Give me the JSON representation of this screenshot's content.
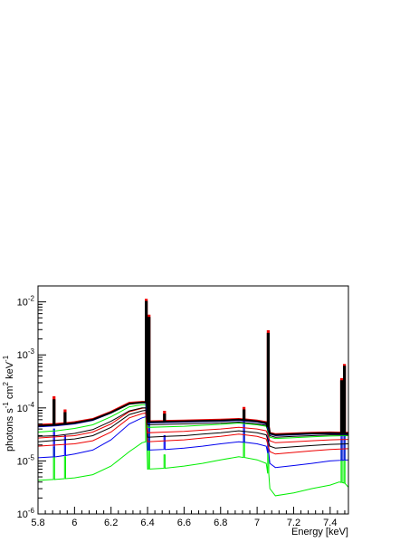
{
  "chart_data": {
    "type": "line",
    "title": "",
    "xlabel": "Energy [keV]",
    "ylabel_parts": [
      "photons s",
      "-1",
      " cm",
      "2",
      " keV",
      "-1"
    ],
    "xlim": [
      5.8,
      7.5
    ],
    "ylim": [
      1e-06,
      0.02
    ],
    "log_y": true,
    "grid": false,
    "legend": "none",
    "x_ticks": [
      {
        "value": 5.8,
        "label": "5.8"
      },
      {
        "value": 6.0,
        "label": "6"
      },
      {
        "value": 6.2,
        "label": "6.2"
      },
      {
        "value": 6.4,
        "label": "6.4"
      },
      {
        "value": 6.6,
        "label": "6.6"
      },
      {
        "value": 6.8,
        "label": "6.8"
      },
      {
        "value": 7.0,
        "label": "7"
      },
      {
        "value": 7.2,
        "label": "7.2"
      },
      {
        "value": 7.4,
        "label": "7.4"
      }
    ],
    "y_ticks": [
      {
        "value": 1e-06,
        "base": "10",
        "exp": "-6"
      },
      {
        "value": 1e-05,
        "base": "10",
        "exp": "-5"
      },
      {
        "value": 0.0001,
        "base": "10",
        "exp": "-4"
      },
      {
        "value": 0.001,
        "base": "10",
        "exp": "-3"
      },
      {
        "value": 0.01,
        "base": "10",
        "exp": "-2"
      }
    ],
    "series": [
      {
        "color": "#00ee00",
        "continuum": [
          [
            5.8,
            4.3e-06
          ],
          [
            5.9,
            4.5e-06
          ],
          [
            6.0,
            4.8e-06
          ],
          [
            6.1,
            5.5e-06
          ],
          [
            6.2,
            8e-06
          ],
          [
            6.3,
            1.5e-05
          ],
          [
            6.37,
            2.2e-05
          ],
          [
            6.39,
            2.3e-05
          ],
          [
            6.4,
            7e-06
          ],
          [
            6.5,
            7.3e-06
          ],
          [
            6.6,
            8e-06
          ],
          [
            6.7,
            9e-06
          ],
          [
            6.8,
            1.05e-05
          ],
          [
            6.9,
            1.2e-05
          ],
          [
            7.0,
            1.05e-05
          ],
          [
            7.05,
            9e-06
          ],
          [
            7.07,
            3e-06
          ],
          [
            7.1,
            2.2e-06
          ],
          [
            7.2,
            2.5e-06
          ],
          [
            7.3,
            3e-06
          ],
          [
            7.4,
            3.5e-06
          ],
          [
            7.45,
            4e-06
          ],
          [
            7.48,
            3.8e-06
          ],
          [
            7.5,
            3.2e-06
          ]
        ],
        "lines": [
          [
            5.885,
            1.8e-05
          ],
          [
            5.945,
            1.2e-05
          ],
          [
            6.39,
            0.00026
          ],
          [
            6.405,
            0.00022
          ],
          [
            6.49,
            1.3e-05
          ],
          [
            6.925,
            3.5e-05
          ],
          [
            7.058,
            8e-05
          ],
          [
            7.46,
            2.6e-05
          ],
          [
            7.475,
            3.2e-05
          ]
        ]
      },
      {
        "color": "#0000ee",
        "continuum": [
          [
            5.8,
            1.15e-05
          ],
          [
            5.9,
            1.2e-05
          ],
          [
            6.0,
            1.35e-05
          ],
          [
            6.1,
            1.6e-05
          ],
          [
            6.2,
            2.5e-05
          ],
          [
            6.3,
            5e-05
          ],
          [
            6.37,
            6.5e-05
          ],
          [
            6.39,
            6.8e-05
          ],
          [
            6.4,
            1.6e-05
          ],
          [
            6.5,
            1.65e-05
          ],
          [
            6.6,
            1.75e-05
          ],
          [
            6.7,
            1.9e-05
          ],
          [
            6.8,
            2.1e-05
          ],
          [
            6.9,
            2.3e-05
          ],
          [
            7.0,
            2.1e-05
          ],
          [
            7.05,
            1.9e-05
          ],
          [
            7.07,
            9e-06
          ],
          [
            7.1,
            7.5e-06
          ],
          [
            7.2,
            8.2e-06
          ],
          [
            7.3,
            9e-06
          ],
          [
            7.4,
            1e-05
          ],
          [
            7.5,
            1.05e-05
          ]
        ],
        "lines": [
          [
            5.885,
            4e-05
          ],
          [
            5.945,
            3e-05
          ],
          [
            6.39,
            0.0003
          ],
          [
            6.405,
            0.00024
          ],
          [
            6.49,
            3e-05
          ],
          [
            6.925,
            6e-05
          ],
          [
            7.058,
            0.0002
          ],
          [
            7.46,
            6e-05
          ],
          [
            7.475,
            8e-05
          ]
        ]
      },
      {
        "color": "#ee0000",
        "continuum": [
          [
            5.8,
            1.9e-05
          ],
          [
            5.9,
            2e-05
          ],
          [
            6.0,
            2.1e-05
          ],
          [
            6.1,
            2.4e-05
          ],
          [
            6.2,
            3.5e-05
          ],
          [
            6.3,
            6.5e-05
          ],
          [
            6.37,
            7.8e-05
          ],
          [
            6.39,
            8e-05
          ],
          [
            6.4,
            2.3e-05
          ],
          [
            6.5,
            2.4e-05
          ],
          [
            6.6,
            2.5e-05
          ],
          [
            6.7,
            2.7e-05
          ],
          [
            6.8,
            2.9e-05
          ],
          [
            6.9,
            3.2e-05
          ],
          [
            7.0,
            2.9e-05
          ],
          [
            7.05,
            2.6e-05
          ],
          [
            7.07,
            1.5e-05
          ],
          [
            7.1,
            1.35e-05
          ],
          [
            7.2,
            1.45e-05
          ],
          [
            7.3,
            1.55e-05
          ],
          [
            7.4,
            1.65e-05
          ],
          [
            7.5,
            1.7e-05
          ]
        ],
        "lines": []
      },
      {
        "color": "#000000",
        "continuum": [
          [
            5.8,
            2.3e-05
          ],
          [
            5.9,
            2.45e-05
          ],
          [
            6.0,
            2.6e-05
          ],
          [
            6.1,
            3e-05
          ],
          [
            6.2,
            4.3e-05
          ],
          [
            6.3,
            7.5e-05
          ],
          [
            6.37,
            8.8e-05
          ],
          [
            6.39,
            9e-05
          ],
          [
            6.4,
            2.8e-05
          ],
          [
            6.5,
            2.9e-05
          ],
          [
            6.6,
            3e-05
          ],
          [
            6.7,
            3.2e-05
          ],
          [
            6.8,
            3.4e-05
          ],
          [
            6.9,
            3.7e-05
          ],
          [
            7.0,
            3.4e-05
          ],
          [
            7.05,
            3.1e-05
          ],
          [
            7.07,
            1.9e-05
          ],
          [
            7.1,
            1.75e-05
          ],
          [
            7.2,
            1.85e-05
          ],
          [
            7.3,
            1.95e-05
          ],
          [
            7.4,
            2.05e-05
          ],
          [
            7.5,
            2.1e-05
          ]
        ],
        "lines": []
      },
      {
        "color": "#ee0000",
        "continuum": [
          [
            5.8,
            2.7e-05
          ],
          [
            5.9,
            2.85e-05
          ],
          [
            6.0,
            3e-05
          ],
          [
            6.1,
            3.5e-05
          ],
          [
            6.2,
            5e-05
          ],
          [
            6.3,
            8.5e-05
          ],
          [
            6.37,
            9.8e-05
          ],
          [
            6.39,
            0.0001
          ],
          [
            6.4,
            3.4e-05
          ],
          [
            6.5,
            3.5e-05
          ],
          [
            6.6,
            3.6e-05
          ],
          [
            6.7,
            3.8e-05
          ],
          [
            6.8,
            4e-05
          ],
          [
            6.9,
            4.3e-05
          ],
          [
            7.0,
            4e-05
          ],
          [
            7.05,
            3.7e-05
          ],
          [
            7.07,
            2.4e-05
          ],
          [
            7.1,
            2.2e-05
          ],
          [
            7.2,
            2.3e-05
          ],
          [
            7.3,
            2.4e-05
          ],
          [
            7.4,
            2.5e-05
          ],
          [
            7.5,
            2.55e-05
          ]
        ],
        "lines": []
      },
      {
        "color": "#00ee00",
        "continuum": [
          [
            5.8,
            3.5e-05
          ],
          [
            5.9,
            3.7e-05
          ],
          [
            6.0,
            4.1e-05
          ],
          [
            6.1,
            4.8e-05
          ],
          [
            6.2,
            6.8e-05
          ],
          [
            6.3,
            0.000105
          ],
          [
            6.37,
            0.000115
          ],
          [
            6.39,
            0.000115
          ],
          [
            6.4,
            4.3e-05
          ],
          [
            6.5,
            4.4e-05
          ],
          [
            6.6,
            4.5e-05
          ],
          [
            6.7,
            4.7e-05
          ],
          [
            6.8,
            4.9e-05
          ],
          [
            6.9,
            5.2e-05
          ],
          [
            7.0,
            4.8e-05
          ],
          [
            7.05,
            4.5e-05
          ],
          [
            7.07,
            2.8e-05
          ],
          [
            7.1,
            2.65e-05
          ],
          [
            7.2,
            2.75e-05
          ],
          [
            7.3,
            2.85e-05
          ],
          [
            7.4,
            2.95e-05
          ],
          [
            7.5,
            3e-05
          ]
        ],
        "lines": []
      },
      {
        "color": "#000000",
        "continuum": [
          [
            5.8,
            2.9e-05
          ],
          [
            5.9,
            3e-05
          ],
          [
            6.0,
            3.3e-05
          ],
          [
            6.1,
            3.9e-05
          ],
          [
            6.2,
            5.6e-05
          ],
          [
            6.3,
            8.8e-05
          ],
          [
            6.37,
            0.0001
          ],
          [
            6.39,
            0.0001
          ],
          [
            6.4,
            4.8e-05
          ],
          [
            6.5,
            4.9e-05
          ],
          [
            6.6,
            5e-05
          ],
          [
            6.7,
            5.1e-05
          ],
          [
            6.8,
            5.2e-05
          ],
          [
            6.9,
            5.4e-05
          ],
          [
            7.0,
            5e-05
          ],
          [
            7.05,
            4.7e-05
          ],
          [
            7.07,
            3e-05
          ],
          [
            7.1,
            2.8e-05
          ],
          [
            7.2,
            2.9e-05
          ],
          [
            7.3,
            3e-05
          ],
          [
            7.4,
            3.1e-05
          ],
          [
            7.5,
            3.1e-05
          ]
        ],
        "lines": []
      },
      {
        "color": "#0000ee",
        "continuum": [
          [
            5.8,
            4.4e-05
          ],
          [
            5.9,
            4.6e-05
          ],
          [
            6.0,
            5e-05
          ],
          [
            6.1,
            5.8e-05
          ],
          [
            6.2,
            8e-05
          ],
          [
            6.3,
            0.00012
          ],
          [
            6.37,
            0.000125
          ],
          [
            6.39,
            0.000125
          ],
          [
            6.4,
            5.2e-05
          ],
          [
            6.5,
            5.3e-05
          ],
          [
            6.6,
            5.4e-05
          ],
          [
            6.7,
            5.5e-05
          ],
          [
            6.8,
            5.6e-05
          ],
          [
            6.9,
            5.8e-05
          ],
          [
            7.0,
            5.4e-05
          ],
          [
            7.05,
            5e-05
          ],
          [
            7.07,
            3.2e-05
          ],
          [
            7.1,
            3e-05
          ],
          [
            7.2,
            3.1e-05
          ],
          [
            7.3,
            3.2e-05
          ],
          [
            7.4,
            3.25e-05
          ],
          [
            7.5,
            3.2e-05
          ]
        ],
        "lines": []
      },
      {
        "color": "#ee0000",
        "continuum": [
          [
            5.8,
            4.8e-05
          ],
          [
            5.9,
            5e-05
          ],
          [
            6.0,
            5.4e-05
          ],
          [
            6.1,
            6.2e-05
          ],
          [
            6.2,
            8.5e-05
          ],
          [
            6.3,
            0.000125
          ],
          [
            6.37,
            0.00013
          ],
          [
            6.39,
            0.00013
          ],
          [
            6.4,
            5.6e-05
          ],
          [
            6.5,
            5.7e-05
          ],
          [
            6.6,
            5.8e-05
          ],
          [
            6.7,
            5.9e-05
          ],
          [
            6.8,
            6e-05
          ],
          [
            6.9,
            6.2e-05
          ],
          [
            7.0,
            5.8e-05
          ],
          [
            7.05,
            5.4e-05
          ],
          [
            7.07,
            3.4e-05
          ],
          [
            7.1,
            3.2e-05
          ],
          [
            7.2,
            3.3e-05
          ],
          [
            7.3,
            3.4e-05
          ],
          [
            7.4,
            3.45e-05
          ],
          [
            7.5,
            3.4e-05
          ]
        ],
        "lines": [
          [
            5.885,
            0.00016
          ],
          [
            5.945,
            9e-05
          ],
          [
            6.39,
            0.011
          ],
          [
            6.405,
            0.0055
          ],
          [
            6.49,
            8.5e-05
          ],
          [
            6.925,
            0.0001
          ],
          [
            7.058,
            0.0028
          ],
          [
            7.46,
            0.00035
          ],
          [
            7.475,
            0.00065
          ]
        ]
      },
      {
        "color": "#000000",
        "continuum": [
          [
            5.8,
            4.6e-05
          ],
          [
            5.9,
            4.8e-05
          ],
          [
            6.0,
            5.2e-05
          ],
          [
            6.1,
            6e-05
          ],
          [
            6.2,
            8.2e-05
          ],
          [
            6.3,
            0.00012
          ],
          [
            6.37,
            0.000127
          ],
          [
            6.39,
            0.000127
          ],
          [
            6.4,
            5.4e-05
          ],
          [
            6.5,
            5.5e-05
          ],
          [
            6.6,
            5.6e-05
          ],
          [
            6.7,
            5.7e-05
          ],
          [
            6.8,
            5.8e-05
          ],
          [
            6.9,
            6e-05
          ],
          [
            7.0,
            5.6e-05
          ],
          [
            7.05,
            5.2e-05
          ],
          [
            7.07,
            3.3e-05
          ],
          [
            7.1,
            3.1e-05
          ],
          [
            7.2,
            3.2e-05
          ],
          [
            7.3,
            3.3e-05
          ],
          [
            7.4,
            3.35e-05
          ],
          [
            7.5,
            3.3e-05
          ]
        ],
        "lines": [
          [
            5.885,
            0.00014
          ],
          [
            5.945,
            8e-05
          ],
          [
            6.39,
            0.01
          ],
          [
            6.405,
            0.005
          ],
          [
            6.49,
            7.5e-05
          ],
          [
            6.925,
            9e-05
          ],
          [
            7.058,
            0.0025
          ],
          [
            7.46,
            0.00032
          ],
          [
            7.475,
            0.0006
          ]
        ]
      }
    ]
  }
}
